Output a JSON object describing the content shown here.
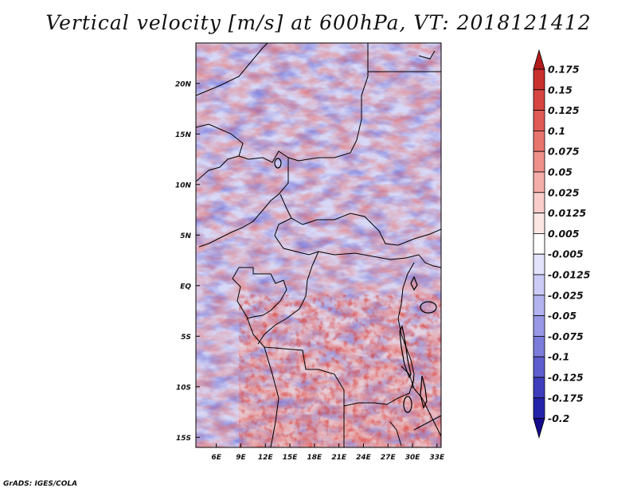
{
  "title": "Vertical velocity [m/s] at 600hPa, VT: 2018121412",
  "credit": "GrADS: IGES/COLA",
  "map": {
    "lat_labels": [
      "20N",
      "15N",
      "10N",
      "5N",
      "EQ",
      "5S",
      "10S",
      "15S"
    ],
    "lon_labels": [
      "6E",
      "9E",
      "12E",
      "15E",
      "18E",
      "21E",
      "24E",
      "27E",
      "30E",
      "33E"
    ],
    "lat_range": [
      -16,
      24
    ],
    "lon_range": [
      3.5,
      33.5
    ]
  },
  "colorbar": {
    "labels": [
      "0.175",
      "0.15",
      "0.125",
      "0.1",
      "0.075",
      "0.05",
      "0.025",
      "0.0125",
      "0.005",
      "-0.005",
      "-0.0125",
      "-0.025",
      "-0.05",
      "-0.075",
      "-0.1",
      "-0.125",
      "-0.175",
      "-0.2"
    ],
    "colors": [
      "#b11b1b",
      "#c8302e",
      "#d64541",
      "#e05a55",
      "#e8746e",
      "#ef908a",
      "#f4aea9",
      "#f8cdca",
      "#fbe6e4",
      "#ffffff",
      "#e3e3fb",
      "#cbcbf6",
      "#b3b3f0",
      "#9898e6",
      "#7c7cdb",
      "#5e5ece",
      "#3e3ebd",
      "#2323aa",
      "#140a8c"
    ]
  }
}
